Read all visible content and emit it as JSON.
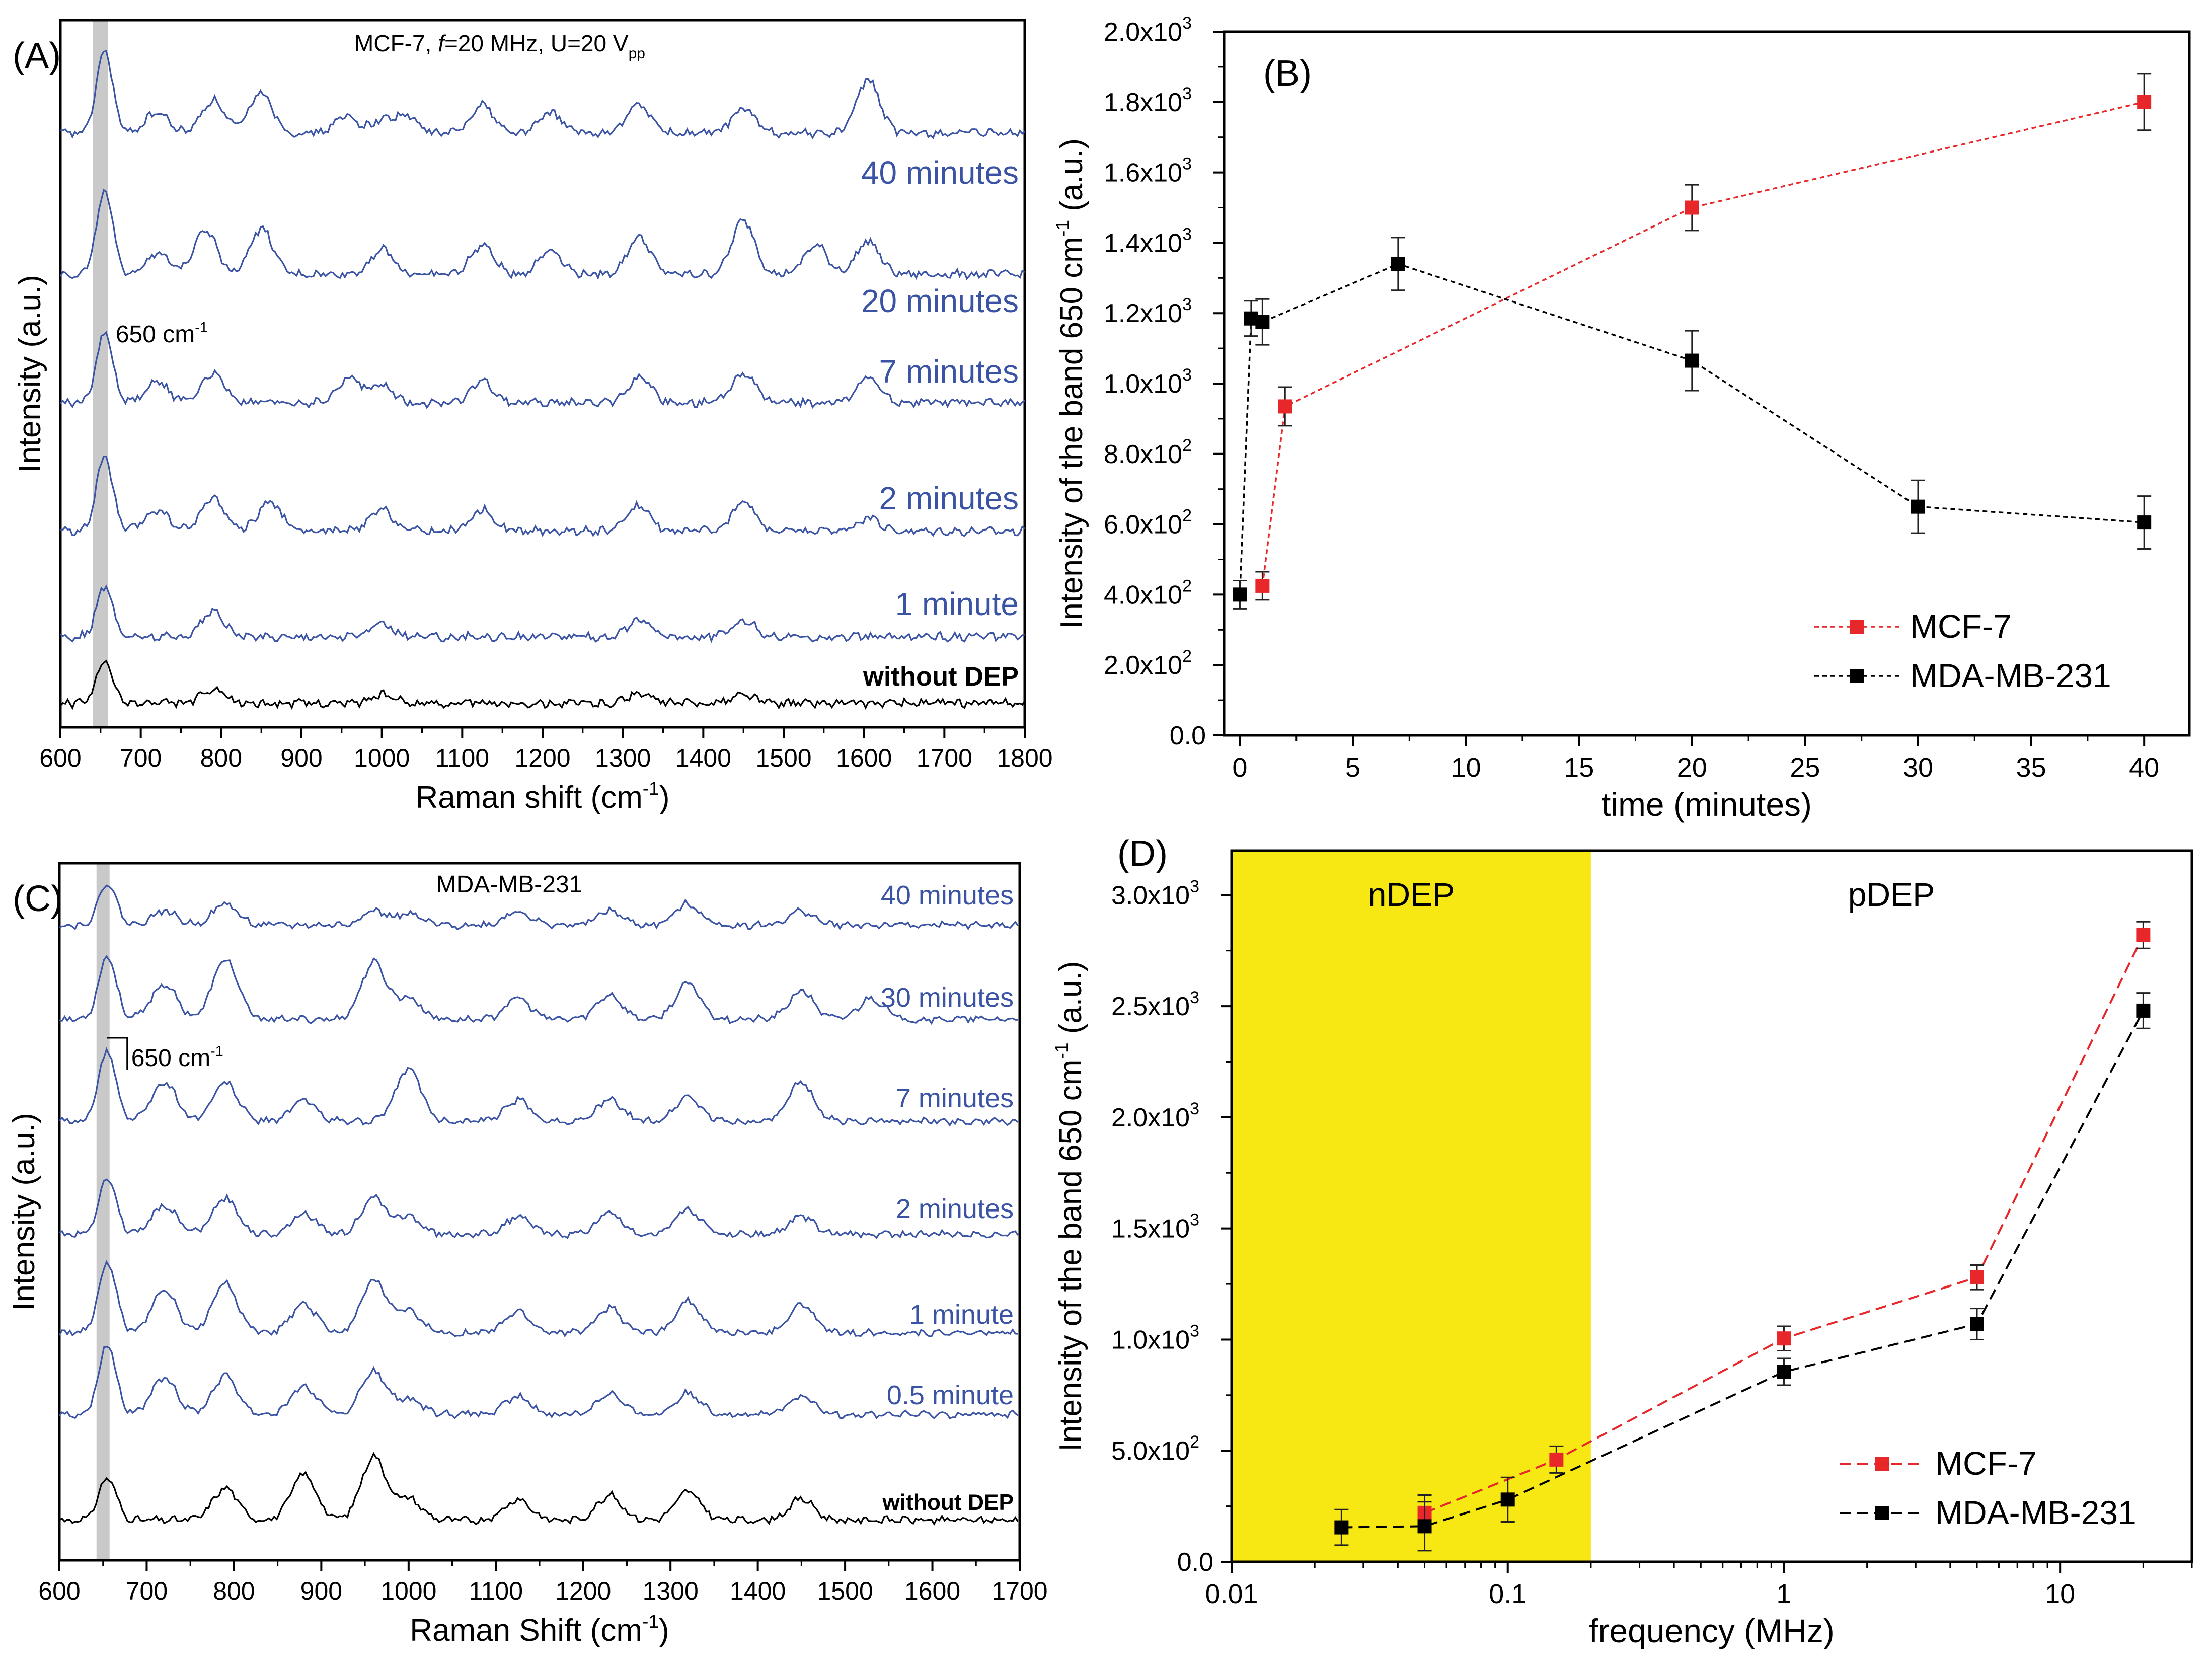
{
  "chart_data": [
    {
      "panel": "(A)",
      "type": "line",
      "title": "MCF-7, f=20 MHz, U=20 Vpp",
      "title_parts": {
        "pre": "MCF-7, ",
        "italic": "f",
        "mid": "=20 MHz, U=20 V",
        "sub": "pp"
      },
      "xlabel": "Raman shift (cm-1)",
      "xlabel_parts": {
        "pre": "Raman shift (cm",
        "sup": "-1",
        "post": ")"
      },
      "ylabel": "Intensity (a.u.)",
      "xlim": [
        600,
        1800
      ],
      "x_ticks": [
        600,
        700,
        800,
        900,
        1000,
        1100,
        1200,
        1300,
        1400,
        1500,
        1600,
        1700,
        1800
      ],
      "band_marker": {
        "x": 650,
        "label": "650 cm-1",
        "label_pre": "650 cm",
        "label_sup": "-1"
      },
      "series": [
        {
          "name": "40 minutes",
          "color": "#3a53a4",
          "peaks": [
            [
              655,
              1.0
            ],
            [
              720,
              0.25
            ],
            [
              790,
              0.4
            ],
            [
              850,
              0.5
            ],
            [
              955,
              0.2
            ],
            [
              1000,
              0.15
            ],
            [
              1030,
              0.2
            ],
            [
              1125,
              0.35
            ],
            [
              1210,
              0.25
            ],
            [
              1320,
              0.35
            ],
            [
              1450,
              0.3
            ],
            [
              1605,
              0.65
            ]
          ]
        },
        {
          "name": "20 minutes",
          "color": "#3a53a4",
          "peaks": [
            [
              655,
              1.0
            ],
            [
              720,
              0.25
            ],
            [
              780,
              0.55
            ],
            [
              850,
              0.55
            ],
            [
              1000,
              0.3
            ],
            [
              1125,
              0.35
            ],
            [
              1210,
              0.3
            ],
            [
              1320,
              0.45
            ],
            [
              1450,
              0.65
            ],
            [
              1540,
              0.35
            ],
            [
              1605,
              0.4
            ]
          ]
        },
        {
          "name": "7 minutes",
          "color": "#3a53a4",
          "peaks": [
            [
              655,
              0.85
            ],
            [
              720,
              0.25
            ],
            [
              790,
              0.35
            ],
            [
              960,
              0.3
            ],
            [
              1000,
              0.2
            ],
            [
              1125,
              0.25
            ],
            [
              1320,
              0.3
            ],
            [
              1450,
              0.35
            ],
            [
              1605,
              0.3
            ]
          ]
        },
        {
          "name": "2 minutes",
          "color": "#3a53a4",
          "peaks": [
            [
              655,
              0.9
            ],
            [
              720,
              0.25
            ],
            [
              790,
              0.4
            ],
            [
              860,
              0.35
            ],
            [
              1000,
              0.25
            ],
            [
              1125,
              0.25
            ],
            [
              1320,
              0.3
            ],
            [
              1450,
              0.35
            ],
            [
              1605,
              0.15
            ]
          ]
        },
        {
          "name": "1 minute",
          "color": "#3a53a4",
          "peaks": [
            [
              655,
              0.6
            ],
            [
              790,
              0.3
            ],
            [
              1000,
              0.15
            ],
            [
              1320,
              0.2
            ],
            [
              1450,
              0.2
            ]
          ]
        },
        {
          "name": "without DEP",
          "color": "#000000",
          "peaks": [
            [
              655,
              0.5
            ],
            [
              790,
              0.15
            ],
            [
              1000,
              0.1
            ],
            [
              1320,
              0.12
            ],
            [
              1450,
              0.1
            ]
          ]
        }
      ]
    },
    {
      "panel": "(B)",
      "type": "line",
      "xlabel": "time (minutes)",
      "ylabel": "Intensity of the band 650 cm-1 (a.u.)",
      "ylabel_parts": {
        "pre": "Intensity of the band 650 cm",
        "sup": "-1",
        "post": " (a.u.)"
      },
      "xlim": [
        -0.7,
        42
      ],
      "ylim": [
        0,
        2000
      ],
      "x_ticks": [
        0,
        5,
        10,
        15,
        20,
        25,
        30,
        35,
        40
      ],
      "y_ticks": [
        0,
        200,
        400,
        600,
        800,
        1000,
        1200,
        1400,
        1600,
        1800,
        2000
      ],
      "y_tick_labels": [
        {
          "mant": "0.0",
          "exp": ""
        },
        {
          "mant": "2.0x10",
          "exp": "2"
        },
        {
          "mant": "4.0x10",
          "exp": "2"
        },
        {
          "mant": "6.0x10",
          "exp": "2"
        },
        {
          "mant": "8.0x10",
          "exp": "2"
        },
        {
          "mant": "1.0x10",
          "exp": "3"
        },
        {
          "mant": "1.2x10",
          "exp": "3"
        },
        {
          "mant": "1.4x10",
          "exp": "3"
        },
        {
          "mant": "1.6x10",
          "exp": "3"
        },
        {
          "mant": "1.8x10",
          "exp": "3"
        },
        {
          "mant": "2.0x10",
          "exp": "3"
        }
      ],
      "legend_position": "bottom-right",
      "series": [
        {
          "name": "MCF-7",
          "color": "#e8272a",
          "x": [
            1,
            2,
            20,
            40
          ],
          "y": [
            425,
            935,
            1500,
            1800
          ],
          "err": [
            40,
            55,
            65,
            80
          ]
        },
        {
          "name": "MDA-MB-231",
          "color": "#000000",
          "x": [
            0,
            0.5,
            1,
            7,
            20,
            30,
            40
          ],
          "y": [
            400,
            1185,
            1175,
            1340,
            1065,
            650,
            605
          ],
          "err": [
            40,
            50,
            65,
            75,
            85,
            75,
            75
          ]
        }
      ]
    },
    {
      "panel": "(C)",
      "type": "line",
      "title": "MDA-MB-231",
      "xlabel": "Raman Shift (cm-1)",
      "xlabel_parts": {
        "pre": "Raman Shift (cm",
        "sup": "-1",
        "post": ")"
      },
      "ylabel": "Intensity (a.u.)",
      "xlim": [
        600,
        1700
      ],
      "x_ticks": [
        600,
        700,
        800,
        900,
        1000,
        1100,
        1200,
        1300,
        1400,
        1500,
        1600,
        1700
      ],
      "band_marker": {
        "x": 650,
        "label": "650 cm-1",
        "label_pre": "650 cm",
        "label_sup": "-1"
      },
      "series": [
        {
          "name": "40 minutes",
          "color": "#3a53a4",
          "peaks": [
            [
              655,
              0.6
            ],
            [
              720,
              0.2
            ],
            [
              790,
              0.3
            ],
            [
              960,
              0.2
            ],
            [
              1000,
              0.15
            ],
            [
              1125,
              0.2
            ],
            [
              1230,
              0.2
            ],
            [
              1320,
              0.3
            ],
            [
              1450,
              0.2
            ]
          ]
        },
        {
          "name": "30 minutes",
          "color": "#3a53a4",
          "peaks": [
            [
              655,
              0.9
            ],
            [
              720,
              0.5
            ],
            [
              790,
              0.85
            ],
            [
              960,
              0.8
            ],
            [
              1000,
              0.3
            ],
            [
              1125,
              0.3
            ],
            [
              1230,
              0.35
            ],
            [
              1320,
              0.5
            ],
            [
              1450,
              0.4
            ],
            [
              1530,
              0.3
            ]
          ]
        },
        {
          "name": "7 minutes",
          "color": "#3a53a4",
          "peaks": [
            [
              655,
              1.0
            ],
            [
              720,
              0.55
            ],
            [
              790,
              0.55
            ],
            [
              880,
              0.3
            ],
            [
              1000,
              0.75
            ],
            [
              1125,
              0.3
            ],
            [
              1230,
              0.3
            ],
            [
              1320,
              0.35
            ],
            [
              1450,
              0.55
            ]
          ]
        },
        {
          "name": "2 minutes",
          "color": "#3a53a4",
          "peaks": [
            [
              655,
              0.8
            ],
            [
              720,
              0.4
            ],
            [
              790,
              0.5
            ],
            [
              880,
              0.3
            ],
            [
              960,
              0.5
            ],
            [
              1000,
              0.25
            ],
            [
              1125,
              0.25
            ],
            [
              1230,
              0.3
            ],
            [
              1320,
              0.35
            ],
            [
              1450,
              0.25
            ]
          ]
        },
        {
          "name": "1 minute",
          "color": "#3a53a4",
          "peaks": [
            [
              655,
              1.0
            ],
            [
              720,
              0.6
            ],
            [
              790,
              0.7
            ],
            [
              880,
              0.4
            ],
            [
              960,
              0.75
            ],
            [
              1000,
              0.3
            ],
            [
              1125,
              0.3
            ],
            [
              1230,
              0.35
            ],
            [
              1320,
              0.45
            ],
            [
              1450,
              0.4
            ]
          ]
        },
        {
          "name": "0.5 minute",
          "color": "#3a53a4",
          "peaks": [
            [
              655,
              1.0
            ],
            [
              720,
              0.5
            ],
            [
              790,
              0.55
            ],
            [
              880,
              0.4
            ],
            [
              960,
              0.6
            ],
            [
              1000,
              0.2
            ],
            [
              1125,
              0.25
            ],
            [
              1230,
              0.3
            ],
            [
              1320,
              0.3
            ],
            [
              1450,
              0.25
            ]
          ]
        },
        {
          "name": "without DEP",
          "color": "#000000",
          "peaks": [
            [
              655,
              0.6
            ],
            [
              790,
              0.45
            ],
            [
              880,
              0.65
            ],
            [
              960,
              0.9
            ],
            [
              1000,
              0.3
            ],
            [
              1125,
              0.3
            ],
            [
              1230,
              0.35
            ],
            [
              1320,
              0.4
            ],
            [
              1450,
              0.3
            ]
          ]
        }
      ]
    },
    {
      "panel": "(D)",
      "type": "line",
      "xlabel": "frequency (MHz)",
      "ylabel": "Intensity of the band 650 cm-1 (a.u.)",
      "ylabel_parts": {
        "pre": "Intensity of the band 650 cm",
        "sup": "-1",
        "post": " (a.u.)"
      },
      "xscale": "log",
      "xlim": [
        0.01,
        30
      ],
      "ylim": [
        0,
        3200
      ],
      "x_ticks": [
        0.01,
        0.1,
        1,
        10
      ],
      "x_tick_labels": [
        "0.01",
        "0.1",
        "1",
        "10"
      ],
      "y_ticks": [
        0,
        500,
        1000,
        1500,
        2000,
        2500,
        3000
      ],
      "y_tick_labels": [
        {
          "mant": "0.0",
          "exp": ""
        },
        {
          "mant": "5.0x10",
          "exp": "2"
        },
        {
          "mant": "1.0x10",
          "exp": "3"
        },
        {
          "mant": "1.5x10",
          "exp": "3"
        },
        {
          "mant": "2.0x10",
          "exp": "3"
        },
        {
          "mant": "2.5x10",
          "exp": "3"
        },
        {
          "mant": "3.0x10",
          "exp": "3"
        }
      ],
      "regions": [
        {
          "label": "nDEP",
          "x": [
            0.01,
            0.2
          ],
          "color": "#f7e814"
        },
        {
          "label": "pDEP",
          "x": [
            0.2,
            30
          ],
          "color": "#ffffff"
        }
      ],
      "legend_position": "bottom-right",
      "series": [
        {
          "name": "MCF-7",
          "color": "#e8272a",
          "x": [
            0.05,
            0.15,
            1,
            5,
            20
          ],
          "y": [
            220,
            460,
            1005,
            1280,
            2820
          ],
          "err": [
            80,
            60,
            55,
            55,
            60
          ]
        },
        {
          "name": "MDA-MB-231",
          "color": "#000000",
          "x": [
            0.025,
            0.05,
            0.1,
            1,
            5,
            20
          ],
          "y": [
            155,
            160,
            280,
            855,
            1070,
            2480
          ],
          "err": [
            80,
            110,
            100,
            60,
            70,
            80
          ]
        }
      ]
    }
  ]
}
